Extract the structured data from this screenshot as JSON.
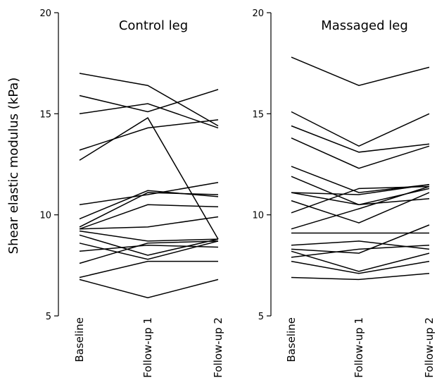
{
  "chart_data": {
    "type": "line",
    "ylabel": "Shear elastic modulus (kPa)",
    "ylim": [
      5,
      20
    ],
    "yticks": [
      5,
      10,
      15,
      20
    ],
    "categories": [
      "Baseline",
      "Follow-up 1",
      "Follow-up 2"
    ],
    "panels": [
      {
        "title": "Control leg",
        "series": [
          {
            "values": [
              17.0,
              16.4,
              14.4
            ]
          },
          {
            "values": [
              15.9,
              15.1,
              16.2
            ]
          },
          {
            "values": [
              15.0,
              15.5,
              14.3
            ]
          },
          {
            "values": [
              13.2,
              14.3,
              14.7
            ]
          },
          {
            "values": [
              12.7,
              14.8,
              8.8
            ]
          },
          {
            "values": [
              10.5,
              11.0,
              11.6
            ]
          },
          {
            "values": [
              9.8,
              11.2,
              10.9
            ]
          },
          {
            "values": [
              9.4,
              11.1,
              11.0
            ]
          },
          {
            "values": [
              9.3,
              10.5,
              10.4
            ]
          },
          {
            "values": [
              9.3,
              9.4,
              9.9
            ]
          },
          {
            "values": [
              9.2,
              8.7,
              8.8
            ]
          },
          {
            "values": [
              9.0,
              8.0,
              8.8
            ]
          },
          {
            "values": [
              8.6,
              7.8,
              8.7
            ]
          },
          {
            "values": [
              8.2,
              8.5,
              8.4
            ]
          },
          {
            "values": [
              7.6,
              8.6,
              8.7
            ]
          },
          {
            "values": [
              6.9,
              7.7,
              7.7
            ]
          },
          {
            "values": [
              6.8,
              5.9,
              6.8
            ]
          }
        ]
      },
      {
        "title": "Massaged leg",
        "series": [
          {
            "values": [
              17.8,
              16.4,
              17.3
            ]
          },
          {
            "values": [
              15.1,
              13.4,
              15.0
            ]
          },
          {
            "values": [
              14.4,
              13.1,
              13.5
            ]
          },
          {
            "values": [
              13.8,
              12.3,
              13.4
            ]
          },
          {
            "values": [
              12.4,
              11.1,
              11.5
            ]
          },
          {
            "values": [
              11.9,
              10.5,
              11.3
            ]
          },
          {
            "values": [
              11.1,
              11.0,
              11.5
            ]
          },
          {
            "values": [
              11.1,
              10.5,
              10.8
            ]
          },
          {
            "values": [
              10.7,
              9.6,
              11.1
            ]
          },
          {
            "values": [
              10.1,
              11.3,
              11.4
            ]
          },
          {
            "values": [
              9.3,
              10.3,
              11.4
            ]
          },
          {
            "values": [
              9.1,
              9.1,
              9.1
            ]
          },
          {
            "values": [
              8.5,
              8.7,
              8.3
            ]
          },
          {
            "values": [
              8.3,
              8.1,
              9.5
            ]
          },
          {
            "values": [
              8.2,
              7.2,
              8.1
            ]
          },
          {
            "values": [
              7.9,
              8.3,
              8.5
            ]
          },
          {
            "values": [
              7.7,
              7.1,
              7.7
            ]
          },
          {
            "values": [
              6.9,
              6.8,
              7.1
            ]
          }
        ]
      }
    ]
  }
}
